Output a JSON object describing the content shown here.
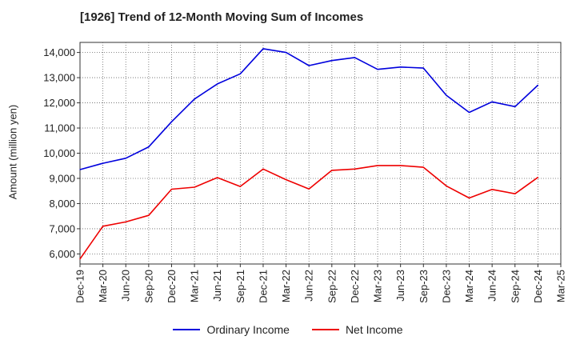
{
  "chart_data": {
    "type": "line",
    "title": "[1926]  Trend of 12-Month Moving Sum of Incomes",
    "xlabel": "",
    "ylabel": "Amount (million yen)",
    "ylim": [
      5600,
      14400
    ],
    "yticks": [
      6000,
      7000,
      8000,
      9000,
      10000,
      11000,
      12000,
      13000,
      14000
    ],
    "ytick_labels": [
      "6,000",
      "7,000",
      "8,000",
      "9,000",
      "10,000",
      "11,000",
      "12,000",
      "13,000",
      "14,000"
    ],
    "categories": [
      "Dec-19",
      "Mar-20",
      "Jun-20",
      "Sep-20",
      "Dec-20",
      "Mar-21",
      "Jun-21",
      "Sep-21",
      "Dec-21",
      "Mar-22",
      "Jun-22",
      "Sep-22",
      "Dec-22",
      "Mar-23",
      "Jun-23",
      "Sep-23",
      "Dec-23",
      "Mar-24",
      "Jun-24",
      "Sep-24",
      "Dec-24",
      "Mar-25"
    ],
    "grid": true,
    "legend_position": "bottom",
    "series": [
      {
        "name": "Ordinary Income",
        "color": "#0000dd",
        "values": [
          9350,
          9600,
          9800,
          10250,
          11250,
          12150,
          12750,
          13150,
          14150,
          14000,
          13480,
          13680,
          13800,
          13330,
          13420,
          13380,
          12300,
          11620,
          12040,
          11850,
          12700,
          null
        ]
      },
      {
        "name": "Net Income",
        "color": "#ee0000",
        "values": [
          5800,
          7100,
          7270,
          7530,
          8570,
          8650,
          9030,
          8680,
          9370,
          8950,
          8580,
          9320,
          9370,
          9510,
          9510,
          9440,
          8700,
          8220,
          8560,
          8390,
          9040,
          null
        ]
      }
    ]
  }
}
